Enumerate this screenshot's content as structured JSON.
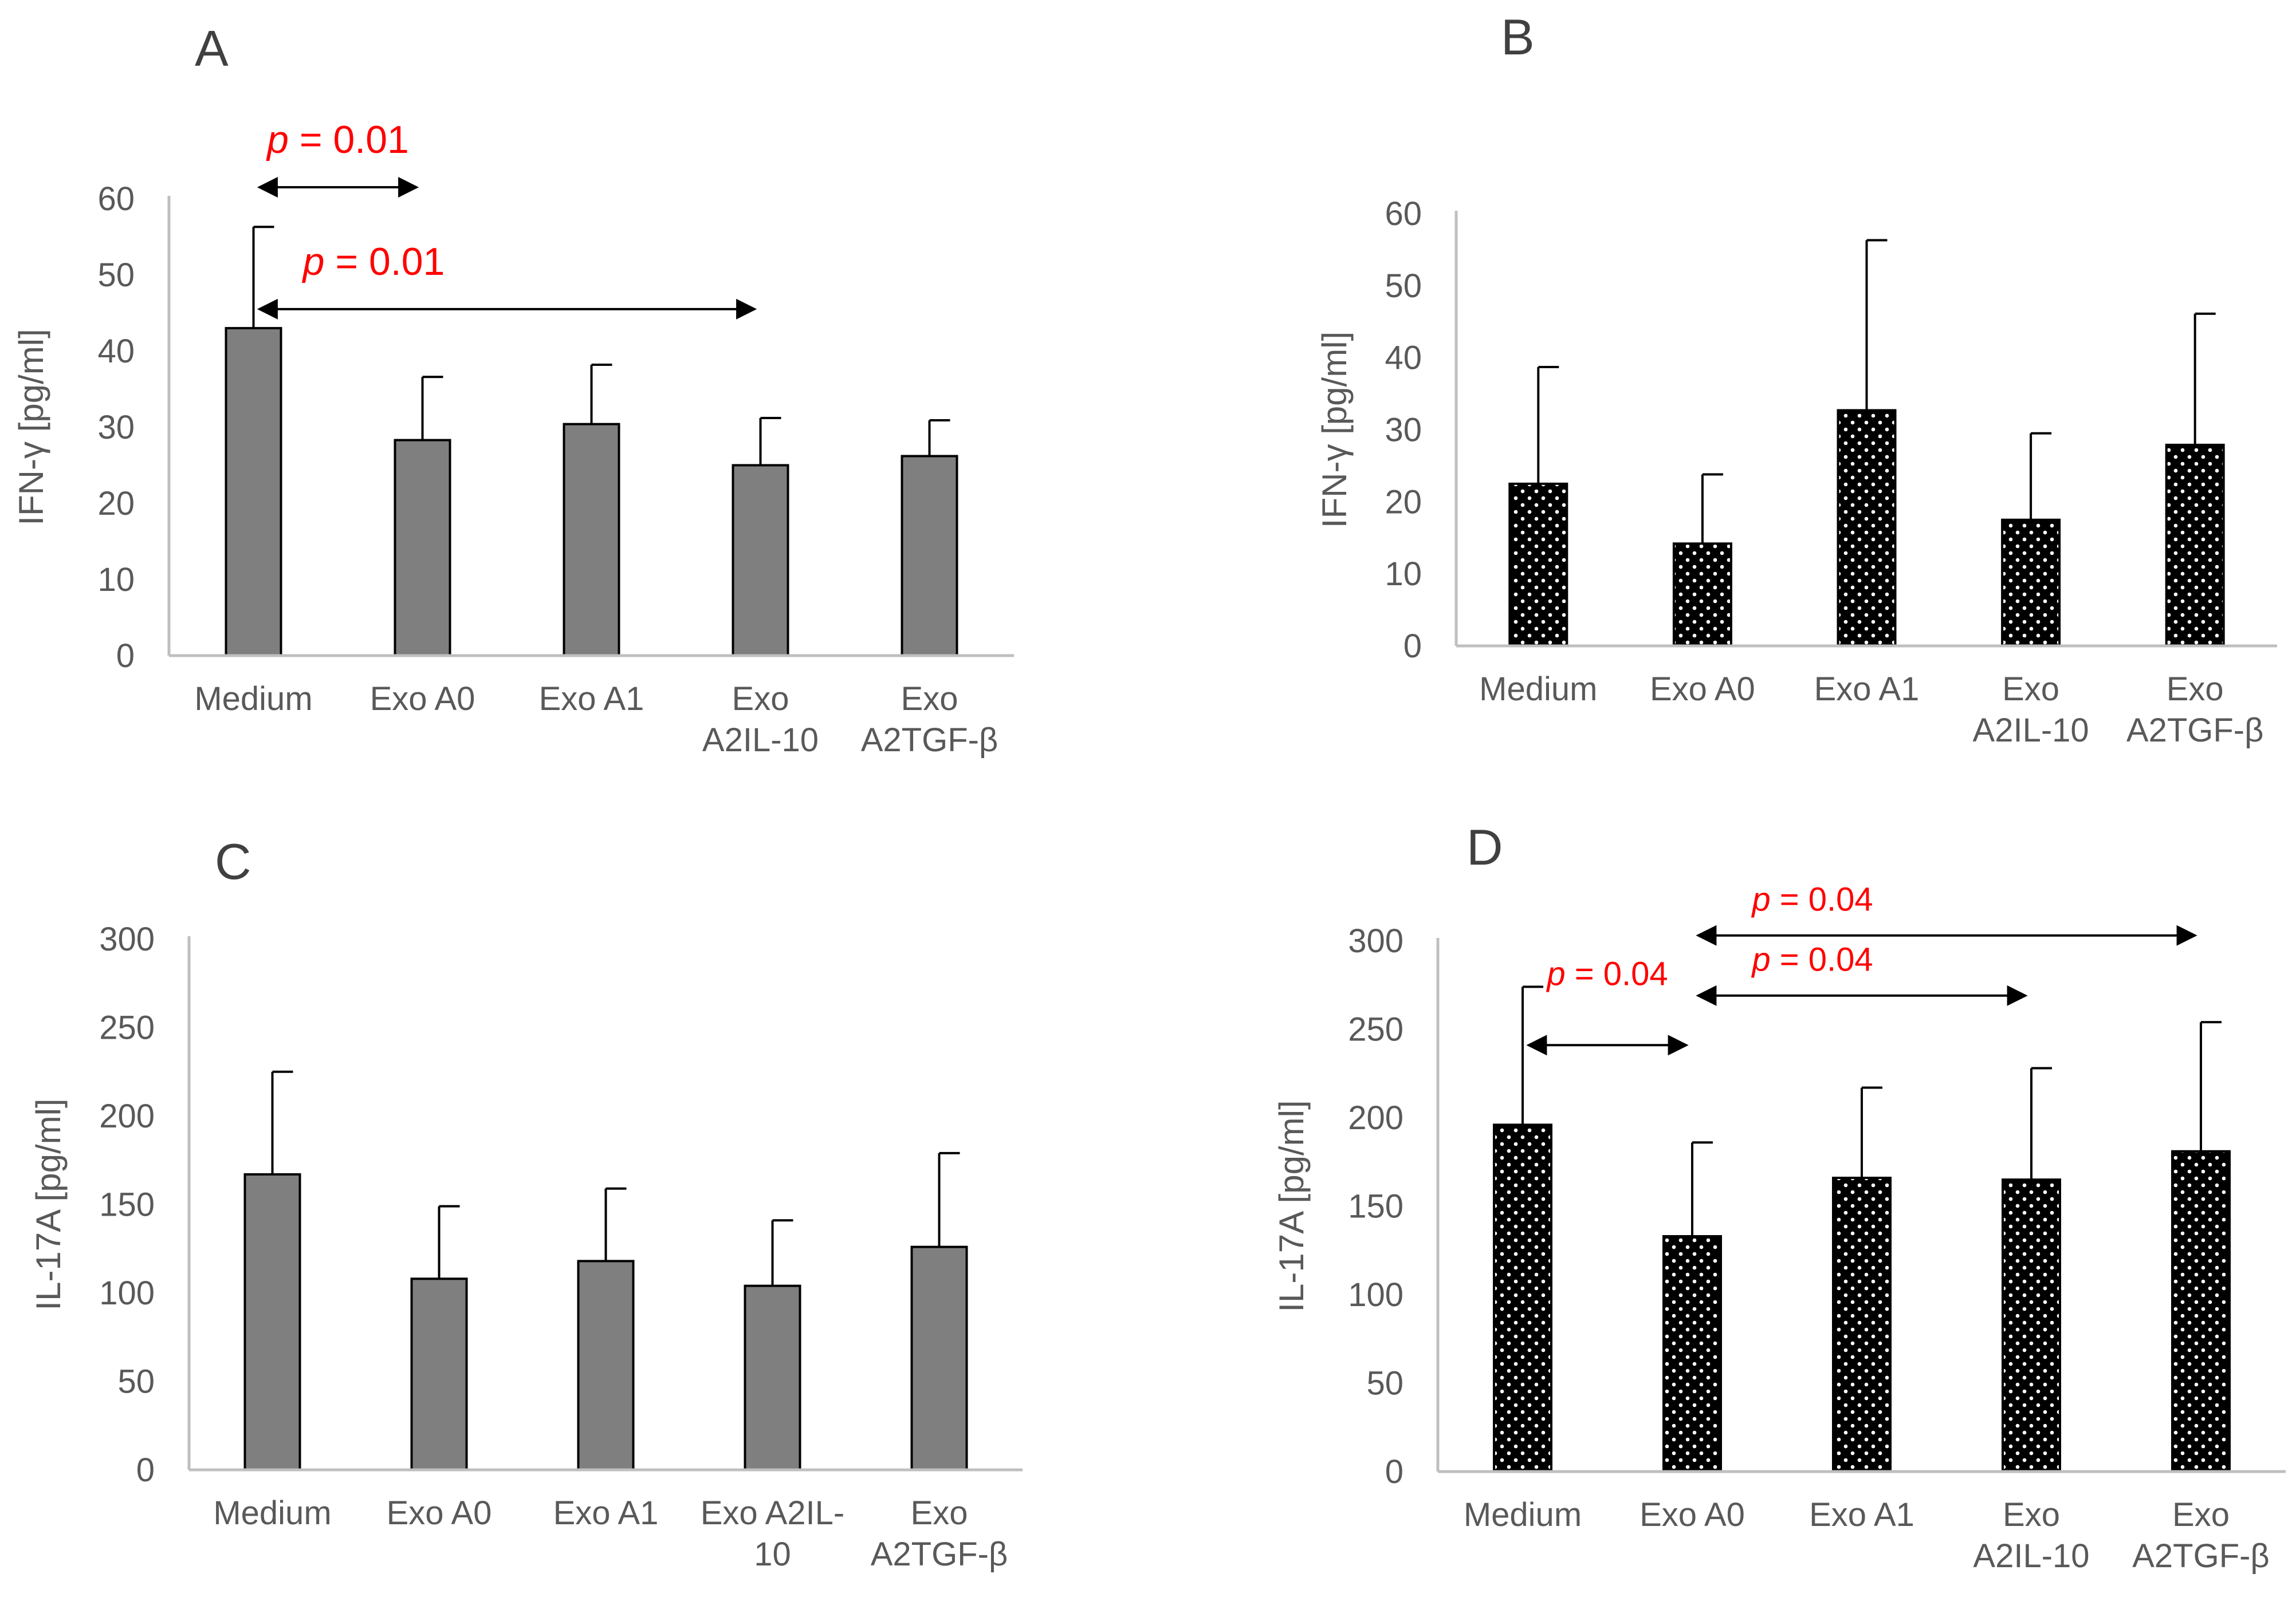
{
  "colors": {
    "gray_bar": "#7f7f7f",
    "black_bar": "#000000",
    "axis": "#bfbfbf",
    "text": "#595959",
    "panel_letter": "#404040",
    "annotation": "#ff0000",
    "arrow": "#000000"
  },
  "chart_data": [
    {
      "panel": "A",
      "type": "bar",
      "pattern": "solid-gray",
      "ylabel": "IFN-γ [pg/ml]",
      "ylim": [
        0,
        60
      ],
      "yticks": [
        "0",
        "10",
        "20",
        "30",
        "40",
        "50",
        "60"
      ],
      "categories": [
        [
          "Medium"
        ],
        [
          "Exo A0"
        ],
        [
          "Exo A1"
        ],
        [
          "Exo",
          "A2IL-10"
        ],
        [
          "Exo",
          "A2TGF-β"
        ]
      ],
      "values": [
        43,
        28.3,
        30.4,
        25,
        26.2
      ],
      "errors": [
        13.3,
        8.3,
        7.8,
        6.2,
        4.7
      ],
      "annotations": [
        {
          "p_label": "p",
          "rest": " = 0.01",
          "from": 0,
          "to": 1,
          "arrow_y": 61.5,
          "text_y": 66
        },
        {
          "p_label": "p",
          "rest": " = 0.01",
          "from": 0,
          "to": 3,
          "arrow_y": 45.5,
          "text_y": 50
        }
      ]
    },
    {
      "panel": "B",
      "type": "bar",
      "pattern": "dotted-black",
      "ylabel": "IFN-γ [pg/ml]",
      "ylim": [
        0,
        60
      ],
      "yticks": [
        "0",
        "10",
        "20",
        "30",
        "40",
        "50",
        "60"
      ],
      "categories": [
        [
          "Medium"
        ],
        [
          "Exo A0"
        ],
        [
          "Exo A1"
        ],
        [
          "Exo",
          "A2IL-10"
        ],
        [
          "Exo",
          "A2TGF-β"
        ]
      ],
      "values": [
        22.5,
        14.2,
        32.7,
        17.5,
        27.9
      ],
      "errors": [
        16.2,
        9.6,
        23.6,
        12,
        18.2
      ],
      "annotations": []
    },
    {
      "panel": "C",
      "type": "bar",
      "pattern": "solid-gray",
      "ylabel": "IL-17A [pg/ml]",
      "ylim": [
        0,
        300
      ],
      "yticks": [
        "0",
        "50",
        "100",
        "150",
        "200",
        "250",
        "300"
      ],
      "categories": [
        [
          "Medium"
        ],
        [
          "Exo A0"
        ],
        [
          "Exo A1"
        ],
        [
          "Exo A2IL-",
          "10"
        ],
        [
          "Exo",
          "A2TGF-β"
        ]
      ],
      "values": [
        167,
        108,
        118,
        104,
        126
      ],
      "errors": [
        58,
        41,
        41,
        37,
        53
      ],
      "annotations": []
    },
    {
      "panel": "D",
      "type": "bar",
      "pattern": "dotted-black",
      "ylabel": "IL-17A [pg/ml]",
      "ylim": [
        0,
        300
      ],
      "yticks": [
        "0",
        "50",
        "100",
        "150",
        "200",
        "250",
        "300"
      ],
      "categories": [
        [
          "Medium"
        ],
        [
          "Exo A0"
        ],
        [
          "Exo A1"
        ],
        [
          "Exo",
          "A2IL-10"
        ],
        [
          "Exo",
          "A2TGF-β"
        ]
      ],
      "values": [
        196,
        133,
        166,
        165,
        181
      ],
      "errors": [
        78,
        53,
        51,
        63,
        73
      ],
      "annotations": [
        {
          "p_label": "p",
          "rest": " = 0.04",
          "from": 0,
          "to": 1,
          "arrow_y": 241,
          "text_y": 275
        },
        {
          "p_label": "p",
          "rest": " = 0.04",
          "from": 1,
          "to": 3,
          "arrow_y": 269,
          "text_y": 283
        },
        {
          "p_label": "p",
          "rest": " = 0.04",
          "from": 1,
          "to": 4,
          "arrow_y": 303,
          "text_y": 317
        }
      ]
    }
  ]
}
